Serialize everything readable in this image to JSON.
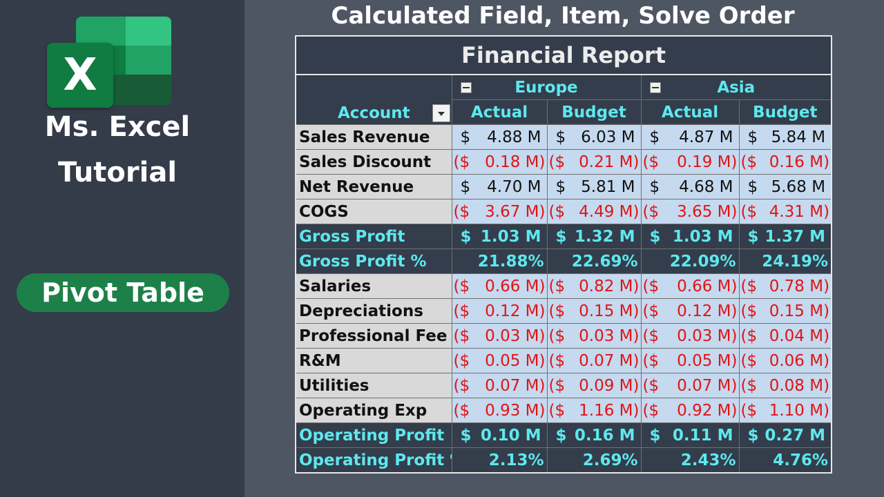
{
  "sidebar": {
    "logo_letter": "X",
    "brand_line1": "Ms. Excel",
    "brand_line2": "Tutorial",
    "pill": "Pivot Table"
  },
  "heading": "Calculated Field, Item, Solve Order",
  "report": {
    "title": "Financial Report",
    "row_header": "Account",
    "groups": [
      "Europe",
      "Asia"
    ],
    "columns": [
      "Actual",
      "Budget",
      "Actual",
      "Budget"
    ],
    "rows": [
      {
        "label": "Sales Revenue",
        "style": "normal",
        "format": "money",
        "cells": [
          {
            "s": "$",
            "n": "4.88 M"
          },
          {
            "s": "$",
            "n": "6.03 M"
          },
          {
            "s": "$",
            "n": "4.87 M"
          },
          {
            "s": "$",
            "n": "5.84 M"
          }
        ]
      },
      {
        "label": "Sales Discount",
        "style": "normal",
        "format": "money-neg",
        "cells": [
          {
            "s": "($",
            "n": "0.18 M)"
          },
          {
            "s": "($",
            "n": "0.21 M)"
          },
          {
            "s": "($",
            "n": "0.19 M)"
          },
          {
            "s": "($",
            "n": "0.16 M)"
          }
        ]
      },
      {
        "label": "Net Revenue",
        "style": "normal",
        "format": "money",
        "cells": [
          {
            "s": "$",
            "n": "4.70 M"
          },
          {
            "s": "$",
            "n": "5.81 M"
          },
          {
            "s": "$",
            "n": "4.68 M"
          },
          {
            "s": "$",
            "n": "5.68 M"
          }
        ]
      },
      {
        "label": "COGS",
        "style": "normal",
        "format": "money-neg",
        "cells": [
          {
            "s": "($",
            "n": "3.67 M)"
          },
          {
            "s": "($",
            "n": "4.49 M)"
          },
          {
            "s": "($",
            "n": "3.65 M)"
          },
          {
            "s": "($",
            "n": "4.31 M)"
          }
        ]
      },
      {
        "label": "Gross Profit",
        "style": "summary",
        "format": "money",
        "cells": [
          {
            "s": "$",
            "n": "1.03 M"
          },
          {
            "s": "$",
            "n": "1.32 M"
          },
          {
            "s": "$",
            "n": "1.03 M"
          },
          {
            "s": "$",
            "n": "1.37 M"
          }
        ]
      },
      {
        "label": "Gross Profit %",
        "style": "summary",
        "format": "percent",
        "cells": [
          {
            "n": "21.88%"
          },
          {
            "n": "22.69%"
          },
          {
            "n": "22.09%"
          },
          {
            "n": "24.19%"
          }
        ]
      },
      {
        "label": "Salaries",
        "style": "normal",
        "format": "money-neg",
        "cells": [
          {
            "s": "($",
            "n": "0.66 M)"
          },
          {
            "s": "($",
            "n": "0.82 M)"
          },
          {
            "s": "($",
            "n": "0.66 M)"
          },
          {
            "s": "($",
            "n": "0.78 M)"
          }
        ]
      },
      {
        "label": "Depreciations",
        "style": "normal",
        "format": "money-neg",
        "cells": [
          {
            "s": "($",
            "n": "0.12 M)"
          },
          {
            "s": "($",
            "n": "0.15 M)"
          },
          {
            "s": "($",
            "n": "0.12 M)"
          },
          {
            "s": "($",
            "n": "0.15 M)"
          }
        ]
      },
      {
        "label": "Professional Fee",
        "style": "normal",
        "format": "money-neg",
        "cells": [
          {
            "s": "($",
            "n": "0.03 M)"
          },
          {
            "s": "($",
            "n": "0.03 M)"
          },
          {
            "s": "($",
            "n": "0.03 M)"
          },
          {
            "s": "($",
            "n": "0.04 M)"
          }
        ]
      },
      {
        "label": "R&M",
        "style": "normal",
        "format": "money-neg",
        "cells": [
          {
            "s": "($",
            "n": "0.05 M)"
          },
          {
            "s": "($",
            "n": "0.07 M)"
          },
          {
            "s": "($",
            "n": "0.05 M)"
          },
          {
            "s": "($",
            "n": "0.06 M)"
          }
        ]
      },
      {
        "label": "Utilities",
        "style": "normal",
        "format": "money-neg",
        "cells": [
          {
            "s": "($",
            "n": "0.07 M)"
          },
          {
            "s": "($",
            "n": "0.09 M)"
          },
          {
            "s": "($",
            "n": "0.07 M)"
          },
          {
            "s": "($",
            "n": "0.08 M)"
          }
        ]
      },
      {
        "label": "Operating Exp",
        "style": "normal",
        "format": "money-neg",
        "cells": [
          {
            "s": "($",
            "n": "0.93 M)"
          },
          {
            "s": "($",
            "n": "1.16 M)"
          },
          {
            "s": "($",
            "n": "0.92 M)"
          },
          {
            "s": "($",
            "n": "1.10 M)"
          }
        ]
      },
      {
        "label": "Operating Profit",
        "style": "summary",
        "format": "money",
        "cells": [
          {
            "s": "$",
            "n": "0.10 M"
          },
          {
            "s": "$",
            "n": "0.16 M"
          },
          {
            "s": "$",
            "n": "0.11 M"
          },
          {
            "s": "$",
            "n": "0.27 M"
          }
        ]
      },
      {
        "label": "Operating Profit %",
        "style": "summary",
        "format": "percent",
        "cells": [
          {
            "n": "2.13%"
          },
          {
            "n": "2.69%"
          },
          {
            "n": "2.43%"
          },
          {
            "n": "4.76%"
          }
        ]
      }
    ]
  },
  "colors": {
    "sidebar_bg": "#343c49",
    "page_bg": "#4f5663",
    "excel_green": "#107c41",
    "pill_green": "#1e8049",
    "header_bg": "#333d4b",
    "header_text": "#5ee8ee",
    "label_bg": "#d9d9d9",
    "value_bg": "#c5d9ef",
    "negative_text": "#e11414"
  }
}
